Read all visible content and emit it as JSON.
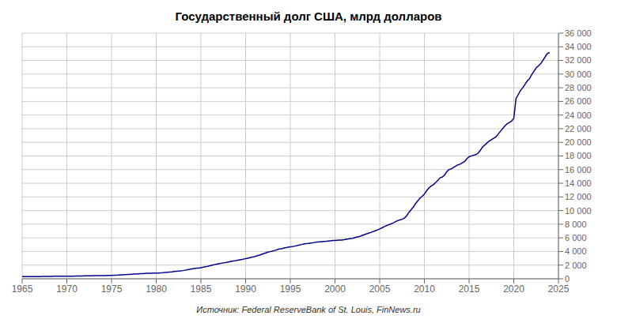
{
  "chart_data": {
    "type": "line",
    "title": "Государственный долг США, млрд долларов",
    "annotations": [
      "Источник: Federal ReserveBank of St. Louis, FinNews.ru"
    ],
    "color": "#00008B",
    "grid": true,
    "xlim": [
      1965,
      2025
    ],
    "ylim": [
      0,
      36000
    ],
    "xticks": [
      1965,
      1970,
      1975,
      1980,
      1985,
      1990,
      1995,
      2000,
      2005,
      2010,
      2015,
      2020,
      2025
    ],
    "yticks": [
      0,
      {
        "value": 2000,
        "label": "2 000"
      },
      {
        "value": 4000,
        "label": "4 000"
      },
      {
        "value": 6000,
        "label": "6 000"
      },
      {
        "value": 8000,
        "label": "8 000"
      },
      {
        "value": 10000,
        "label": "10 000"
      },
      {
        "value": 12000,
        "label": "12 000"
      },
      {
        "value": 14000,
        "label": "14 000"
      },
      {
        "value": 16000,
        "label": "16 000"
      },
      {
        "value": 18000,
        "label": "18 000"
      },
      {
        "value": 20000,
        "label": "20 000"
      },
      {
        "value": 22000,
        "label": "22 000"
      },
      {
        "value": 24000,
        "label": "24 000"
      },
      {
        "value": 26000,
        "label": "26 000"
      },
      {
        "value": 28000,
        "label": "28 000"
      },
      {
        "value": 30000,
        "label": "30 000"
      },
      {
        "value": 32000,
        "label": "32 000"
      },
      {
        "value": 34000,
        "label": "34 000"
      },
      {
        "value": 36000,
        "label": "36 000"
      }
    ],
    "x": [
      1965,
      1965.25,
      1965.5,
      1965.75,
      1966,
      1966.25,
      1966.5,
      1966.75,
      1967,
      1967.25,
      1967.5,
      1967.75,
      1968,
      1968.25,
      1968.5,
      1968.75,
      1969,
      1969.25,
      1969.5,
      1969.75,
      1970,
      1970.25,
      1970.5,
      1970.75,
      1971,
      1971.25,
      1971.5,
      1971.75,
      1972,
      1972.25,
      1972.5,
      1972.75,
      1973,
      1973.25,
      1973.5,
      1973.75,
      1974,
      1974.25,
      1974.5,
      1974.75,
      1975,
      1975.25,
      1975.5,
      1975.75,
      1976,
      1976.25,
      1976.5,
      1976.75,
      1977,
      1977.25,
      1977.5,
      1977.75,
      1978,
      1978.25,
      1978.5,
      1978.75,
      1979,
      1979.25,
      1979.5,
      1979.75,
      1980,
      1980.25,
      1980.5,
      1980.75,
      1981,
      1981.25,
      1981.5,
      1981.75,
      1982,
      1982.25,
      1982.5,
      1982.75,
      1983,
      1983.25,
      1983.5,
      1983.75,
      1984,
      1984.25,
      1984.5,
      1984.75,
      1985,
      1985.25,
      1985.5,
      1985.75,
      1986,
      1986.25,
      1986.5,
      1986.75,
      1987,
      1987.25,
      1987.5,
      1987.75,
      1988,
      1988.25,
      1988.5,
      1988.75,
      1989,
      1989.25,
      1989.5,
      1989.75,
      1990,
      1990.25,
      1990.5,
      1990.75,
      1991,
      1991.25,
      1991.5,
      1991.75,
      1992,
      1992.25,
      1992.5,
      1992.75,
      1993,
      1993.25,
      1993.5,
      1993.75,
      1994,
      1994.25,
      1994.5,
      1994.75,
      1995,
      1995.25,
      1995.5,
      1995.75,
      1996,
      1996.25,
      1996.5,
      1996.75,
      1997,
      1997.25,
      1997.5,
      1997.75,
      1998,
      1998.25,
      1998.5,
      1998.75,
      1999,
      1999.25,
      1999.5,
      1999.75,
      2000,
      2000.25,
      2000.5,
      2000.75,
      2001,
      2001.25,
      2001.5,
      2001.75,
      2002,
      2002.25,
      2002.5,
      2002.75,
      2003,
      2003.25,
      2003.5,
      2003.75,
      2004,
      2004.25,
      2004.5,
      2004.75,
      2005,
      2005.25,
      2005.5,
      2005.75,
      2006,
      2006.25,
      2006.5,
      2006.75,
      2007,
      2007.25,
      2007.5,
      2007.75,
      2008,
      2008.25,
      2008.5,
      2008.75,
      2009,
      2009.25,
      2009.5,
      2009.75,
      2010,
      2010.25,
      2010.5,
      2010.75,
      2011,
      2011.25,
      2011.5,
      2011.75,
      2012,
      2012.25,
      2012.5,
      2012.75,
      2013,
      2013.25,
      2013.5,
      2013.75,
      2014,
      2014.25,
      2014.5,
      2014.75,
      2015,
      2015.25,
      2015.5,
      2015.75,
      2016,
      2016.25,
      2016.5,
      2016.75,
      2017,
      2017.25,
      2017.5,
      2017.75,
      2018,
      2018.25,
      2018.5,
      2018.75,
      2019,
      2019.25,
      2019.5,
      2019.75,
      2020,
      2020.25,
      2020.5,
      2020.75,
      2021,
      2021.25,
      2021.5,
      2021.75,
      2022,
      2022.25,
      2022.5,
      2022.75,
      2023,
      2023.25,
      2023.5,
      2023.75,
      2024
    ],
    "values": [
      317,
      318,
      320,
      321,
      322,
      323,
      325,
      328,
      330,
      335,
      338,
      342,
      348,
      355,
      362,
      366,
      365,
      364,
      363,
      365,
      370,
      376,
      382,
      390,
      398,
      403,
      408,
      415,
      427,
      432,
      436,
      440,
      450,
      456,
      462,
      467,
      472,
      476,
      481,
      485,
      495,
      510,
      527,
      540,
      570,
      590,
      610,
      625,
      650,
      670,
      690,
      708,
      730,
      748,
      762,
      776,
      796,
      810,
      820,
      829,
      833,
      852,
      876,
      900,
      940,
      960,
      980,
      1000,
      1060,
      1100,
      1130,
      1148,
      1200,
      1260,
      1320,
      1380,
      1450,
      1510,
      1550,
      1570,
      1620,
      1700,
      1760,
      1820,
      1920,
      2000,
      2070,
      2130,
      2200,
      2270,
      2330,
      2360,
      2440,
      2520,
      2580,
      2620,
      2680,
      2760,
      2820,
      2880,
      2940,
      3020,
      3100,
      3180,
      3250,
      3350,
      3450,
      3560,
      3680,
      3790,
      3900,
      3980,
      4060,
      4150,
      4250,
      4360,
      4410,
      4490,
      4560,
      4640,
      4680,
      4730,
      4790,
      4860,
      4950,
      5020,
      5100,
      5150,
      5180,
      5230,
      5270,
      5340,
      5380,
      5410,
      5440,
      5470,
      5490,
      5540,
      5570,
      5600,
      5620,
      5640,
      5660,
      5680,
      5730,
      5800,
      5840,
      5900,
      5940,
      6050,
      6140,
      6200,
      6330,
      6460,
      6560,
      6680,
      6790,
      6910,
      7030,
      7160,
      7300,
      7470,
      7620,
      7790,
      7920,
      8050,
      8180,
      8350,
      8520,
      8620,
      8720,
      8870,
      9200,
      9700,
      10100,
      10500,
      11000,
      11400,
      11800,
      12100,
      12400,
      12900,
      13300,
      13600,
      13800,
      14100,
      14400,
      14800,
      14900,
      15200,
      15700,
      16000,
      16100,
      16300,
      16500,
      16700,
      16800,
      17000,
      17200,
      17600,
      17900,
      18000,
      18100,
      18200,
      18400,
      18800,
      19300,
      19600,
      19900,
      20200,
      20400,
      20600,
      20800,
      21200,
      21600,
      22000,
      22400,
      22700,
      22900,
      23100,
      23500,
      26400,
      27000,
      27600,
      28000,
      28500,
      29000,
      29300,
      29900,
      30400,
      30900,
      31200,
      31500,
      32000,
      32500,
      33000,
      33167
    ]
  }
}
